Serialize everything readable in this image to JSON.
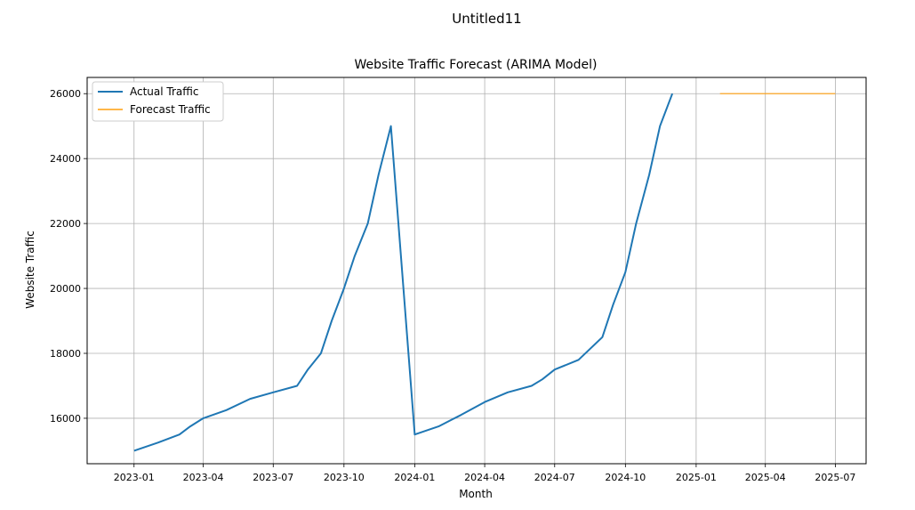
{
  "window": {
    "title": "Untitled11"
  },
  "chart_data": {
    "type": "line",
    "title": "Website Traffic Forecast (ARIMA Model)",
    "xlabel": "Month",
    "ylabel": "Website Traffic",
    "xlim": [
      "2022-11-01",
      "2025-08-10"
    ],
    "ylim": [
      14600,
      26500
    ],
    "grid": true,
    "legend_position": "upper-left",
    "x_tick_labels": [
      "2023-01",
      "2023-04",
      "2023-07",
      "2023-10",
      "2024-01",
      "2024-04",
      "2024-07",
      "2024-10",
      "2025-01",
      "2025-04",
      "2025-07"
    ],
    "y_tick_labels": [
      "16000",
      "18000",
      "20000",
      "22000",
      "24000",
      "26000"
    ],
    "y_ticks": [
      16000,
      18000,
      20000,
      22000,
      24000,
      26000
    ],
    "colors": {
      "actual": "#1f77b4",
      "forecast": "#ff9f0e"
    },
    "series": [
      {
        "name": "Actual Traffic",
        "color": "#1f77b4",
        "points": [
          [
            "2023-01-01",
            15000
          ],
          [
            "2023-02-01",
            15250
          ],
          [
            "2023-03-01",
            15500
          ],
          [
            "2023-03-15",
            15750
          ],
          [
            "2023-04-01",
            16000
          ],
          [
            "2023-05-01",
            16250
          ],
          [
            "2023-06-01",
            16600
          ],
          [
            "2023-07-01",
            16800
          ],
          [
            "2023-08-01",
            17000
          ],
          [
            "2023-08-15",
            17500
          ],
          [
            "2023-09-01",
            18000
          ],
          [
            "2023-09-15",
            19000
          ],
          [
            "2023-10-01",
            20000
          ],
          [
            "2023-10-15",
            21000
          ],
          [
            "2023-11-01",
            22000
          ],
          [
            "2023-11-15",
            23500
          ],
          [
            "2023-12-01",
            25000
          ],
          [
            "2024-01-01",
            15500
          ],
          [
            "2024-02-01",
            15750
          ],
          [
            "2024-03-01",
            16100
          ],
          [
            "2024-04-01",
            16500
          ],
          [
            "2024-05-01",
            16800
          ],
          [
            "2024-06-01",
            17000
          ],
          [
            "2024-06-15",
            17200
          ],
          [
            "2024-07-01",
            17500
          ],
          [
            "2024-08-01",
            17800
          ],
          [
            "2024-09-01",
            18500
          ],
          [
            "2024-09-15",
            19500
          ],
          [
            "2024-10-01",
            20500
          ],
          [
            "2024-10-15",
            22000
          ],
          [
            "2024-11-01",
            23500
          ],
          [
            "2024-11-15",
            25000
          ],
          [
            "2024-12-01",
            26000
          ]
        ]
      },
      {
        "name": "Forecast Traffic",
        "color": "#ff9f0e",
        "points": [
          [
            "2025-02-01",
            26000
          ],
          [
            "2025-07-01",
            26000
          ]
        ]
      }
    ]
  }
}
